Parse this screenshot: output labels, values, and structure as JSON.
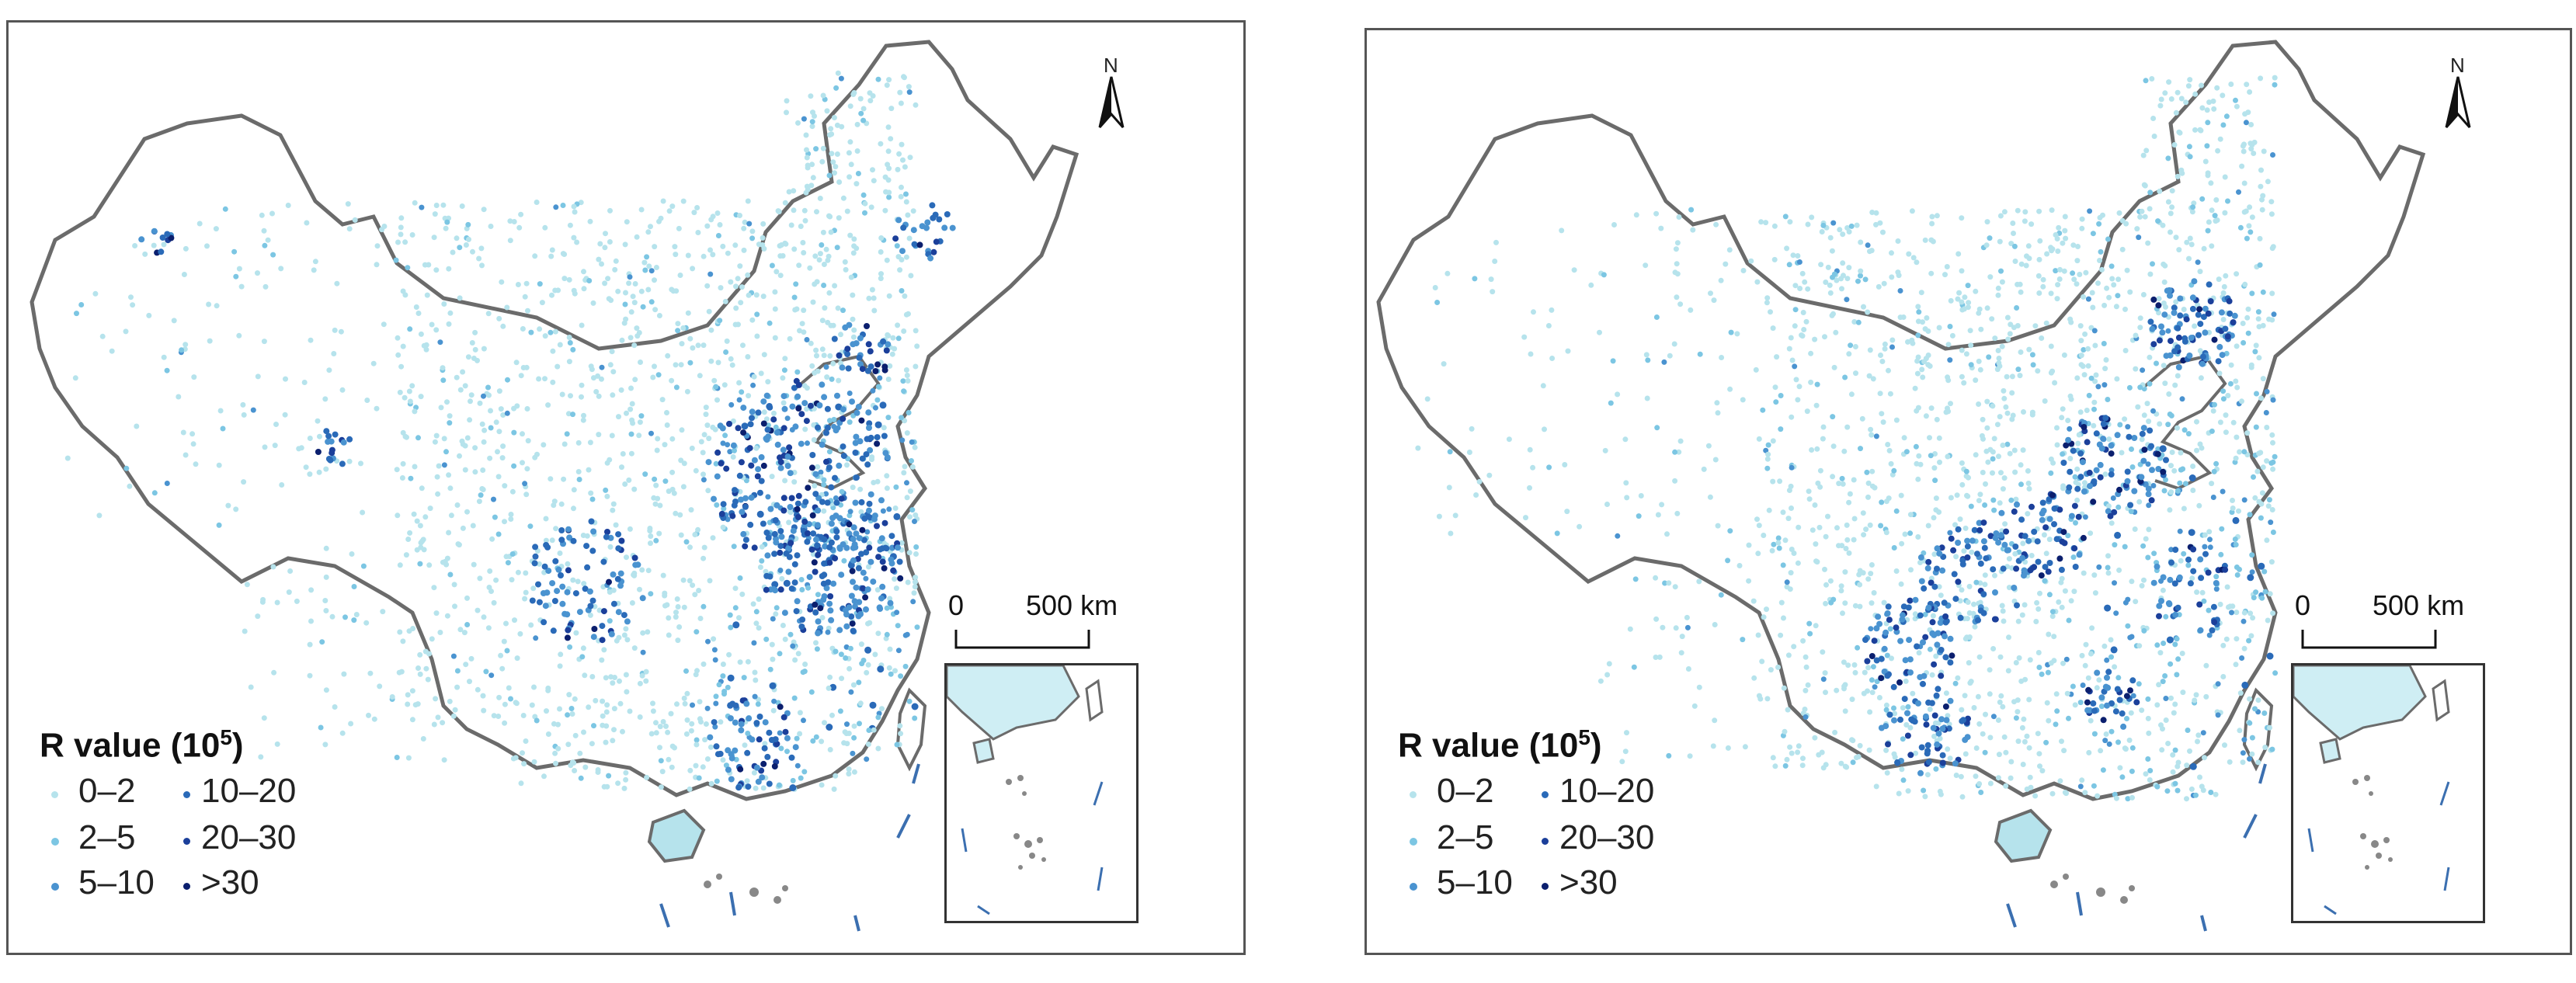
{
  "colors": {
    "outline": "#6b6b6b",
    "class_0_2": "#b6e3ec",
    "class_2_5": "#7cc6e3",
    "class_5_10": "#4a93d0",
    "class_10_20": "#2a6ab8",
    "class_20_30": "#1b3f9a",
    "class_gt30": "#0b1f6e"
  },
  "panels": [
    {
      "legend": {
        "title_prefix": "R value (10",
        "title_exp": "5",
        "title_suffix": ")",
        "items": [
          "0–2",
          "2–5",
          "5–10",
          "10–20",
          "20–30",
          ">30"
        ]
      },
      "scale": {
        "zero": "0",
        "end": "500 km"
      },
      "north": "N"
    },
    {
      "legend": {
        "title_prefix": "R value (10",
        "title_exp": "5",
        "title_suffix": ")",
        "items": [
          "0–2",
          "2–5",
          "5–10",
          "10–20",
          "20–30",
          ">30"
        ]
      },
      "scale": {
        "zero": "0",
        "end": "500 km"
      },
      "north": "N"
    }
  ]
}
